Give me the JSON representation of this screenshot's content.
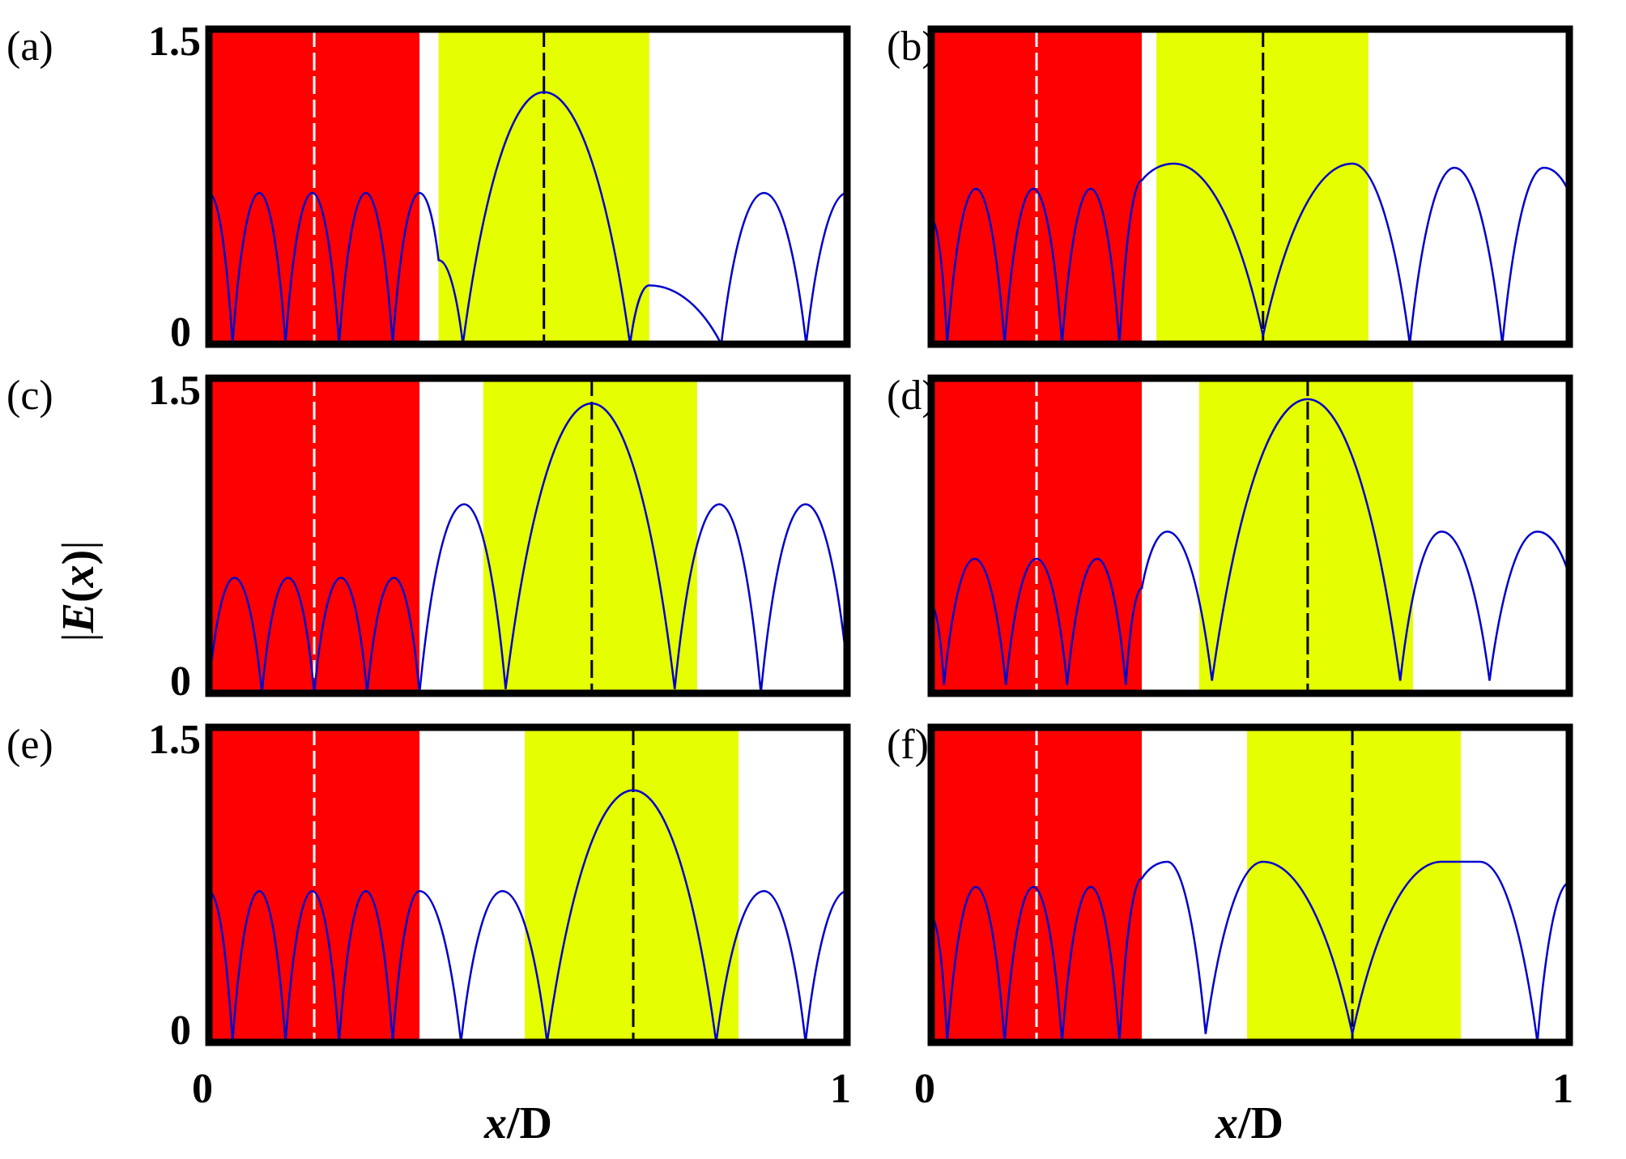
{
  "figure": {
    "ylabel_parts": [
      "|",
      "E",
      "(",
      "x",
      ")",
      "|"
    ],
    "xlabel_parts": [
      "x",
      "/D"
    ]
  },
  "colors": {
    "red_layer": "#ff0000",
    "yellow_layer": "#e5ff00",
    "curve": "#0000cc",
    "frame": "#000000",
    "dash_white": "#ffffff",
    "dash_black": "#000000"
  },
  "chart_data": [
    {
      "type": "line",
      "panel_label": "(a)",
      "xlim": [
        0,
        1
      ],
      "ylim": [
        0,
        1.5
      ],
      "yticks": [
        "1.5",
        "0"
      ],
      "xticks": [],
      "red_region": [
        0,
        0.33
      ],
      "yellow_region": [
        0.36,
        0.69
      ],
      "white_dashed_x": 0.165,
      "black_dashed_x": 0.525,
      "series": [
        {
          "x": [
            0.0,
            0.037,
            0.079,
            0.12,
            0.162,
            0.204,
            0.246,
            0.288,
            0.33,
            0.36,
            0.398,
            0.525,
            0.66,
            0.69,
            0.803,
            0.87,
            0.936,
            1.0
          ],
          "y": [
            0.72,
            0.0,
            0.72,
            0.0,
            0.72,
            0.0,
            0.72,
            0.0,
            0.72,
            0.4,
            0.0,
            1.2,
            0.0,
            0.28,
            0.0,
            0.72,
            0.0,
            0.72
          ]
        }
      ]
    },
    {
      "type": "line",
      "panel_label": "(b)",
      "xlim": [
        0,
        1
      ],
      "ylim": [
        0,
        1.5
      ],
      "yticks": [],
      "xticks": [],
      "red_region": [
        0,
        0.33
      ],
      "yellow_region": [
        0.353,
        0.685
      ],
      "white_dashed_x": 0.165,
      "black_dashed_x": 0.52,
      "series": [
        {
          "x": [
            0.0,
            0.025,
            0.07,
            0.115,
            0.16,
            0.205,
            0.25,
            0.295,
            0.33,
            0.38,
            0.52,
            0.66,
            0.75,
            0.82,
            0.895,
            0.96,
            1.0
          ],
          "y": [
            0.6,
            0.0,
            0.74,
            0.0,
            0.74,
            0.0,
            0.74,
            0.0,
            0.78,
            0.86,
            0.04,
            0.86,
            0.0,
            0.84,
            0.0,
            0.84,
            0.72
          ]
        }
      ]
    },
    {
      "type": "line",
      "panel_label": "(c)",
      "xlim": [
        0,
        1
      ],
      "ylim": [
        0,
        1.5
      ],
      "yticks": [
        "1.5",
        "0"
      ],
      "xticks": [],
      "red_region": [
        0,
        0.33
      ],
      "yellow_region": [
        0.43,
        0.765
      ],
      "white_dashed_x": 0.165,
      "black_dashed_x": 0.6,
      "series": [
        {
          "x": [
            0.0,
            0.04,
            0.083,
            0.124,
            0.165,
            0.207,
            0.248,
            0.29,
            0.33,
            0.4,
            0.465,
            0.6,
            0.73,
            0.8,
            0.865,
            0.935,
            1.0
          ],
          "y": [
            0.03,
            0.55,
            0.0,
            0.55,
            0.0,
            0.55,
            0.0,
            0.55,
            0.0,
            0.9,
            0.02,
            1.38,
            0.02,
            0.9,
            0.0,
            0.9,
            0.13
          ]
        }
      ]
    },
    {
      "type": "line",
      "panel_label": "(d)",
      "xlim": [
        0,
        1
      ],
      "ylim": [
        0,
        1.5
      ],
      "yticks": [],
      "xticks": [],
      "red_region": [
        0,
        0.33
      ],
      "yellow_region": [
        0.42,
        0.755
      ],
      "white_dashed_x": 0.165,
      "black_dashed_x": 0.59,
      "series": [
        {
          "x": [
            0.0,
            0.02,
            0.068,
            0.117,
            0.165,
            0.213,
            0.26,
            0.305,
            0.33,
            0.37,
            0.44,
            0.59,
            0.735,
            0.8,
            0.875,
            0.95,
            1.0
          ],
          "y": [
            0.42,
            0.04,
            0.64,
            0.04,
            0.64,
            0.04,
            0.64,
            0.04,
            0.5,
            0.77,
            0.06,
            1.4,
            0.06,
            0.77,
            0.06,
            0.77,
            0.56
          ]
        }
      ]
    },
    {
      "type": "line",
      "panel_label": "(e)",
      "xlim": [
        0,
        1
      ],
      "ylim": [
        0,
        1.5
      ],
      "yticks": [
        "1.5",
        "0"
      ],
      "xticks": [
        "0",
        "1"
      ],
      "red_region": [
        0,
        0.33
      ],
      "yellow_region": [
        0.495,
        0.83
      ],
      "white_dashed_x": 0.165,
      "black_dashed_x": 0.665,
      "series": [
        {
          "x": [
            0.0,
            0.037,
            0.079,
            0.12,
            0.162,
            0.204,
            0.246,
            0.288,
            0.33,
            0.395,
            0.46,
            0.53,
            0.665,
            0.795,
            0.87,
            0.935,
            1.0
          ],
          "y": [
            0.72,
            0.0,
            0.72,
            0.0,
            0.72,
            0.0,
            0.72,
            0.0,
            0.72,
            0.0,
            0.72,
            0.0,
            1.2,
            0.0,
            0.72,
            0.0,
            0.72
          ]
        }
      ]
    },
    {
      "type": "line",
      "panel_label": "(f)",
      "xlim": [
        0,
        1
      ],
      "ylim": [
        0,
        1.5
      ],
      "yticks": [],
      "xticks": [
        "0",
        "1"
      ],
      "red_region": [
        0,
        0.33
      ],
      "yellow_region": [
        0.495,
        0.83
      ],
      "white_dashed_x": 0.165,
      "black_dashed_x": 0.66,
      "series": [
        {
          "x": [
            0.0,
            0.025,
            0.07,
            0.115,
            0.16,
            0.205,
            0.25,
            0.295,
            0.33,
            0.37,
            0.43,
            0.52,
            0.66,
            0.8,
            0.86,
            0.95,
            1.0
          ],
          "y": [
            0.6,
            0.0,
            0.74,
            0.0,
            0.74,
            0.0,
            0.74,
            0.0,
            0.78,
            0.86,
            0.04,
            0.86,
            0.04,
            0.86,
            0.86,
            0.0,
            0.76
          ]
        }
      ]
    }
  ]
}
